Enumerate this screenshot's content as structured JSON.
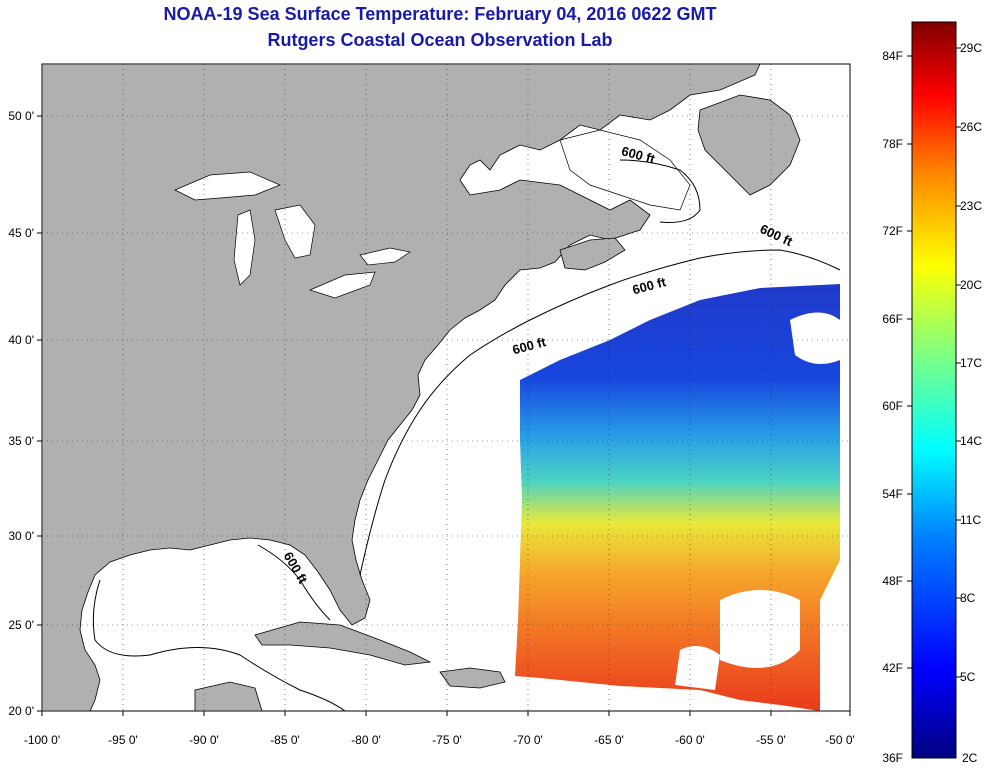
{
  "title": {
    "line1": "NOAA-19 Sea Surface Temperature:  February 04, 2016 0622 GMT",
    "line2": "Rutgers Coastal Ocean Observation Lab"
  },
  "map": {
    "lon_range": [
      -100,
      -50
    ],
    "lat_range": [
      20,
      52.5
    ],
    "lon_ticks": [
      "-100 0'",
      "-95 0'",
      "-90 0'",
      "-85 0'",
      "-80 0'",
      "-75 0'",
      "-70 0'",
      "-65 0'",
      "-60 0'",
      "-55 0'",
      "-50 0'"
    ],
    "lat_ticks": [
      "50 0'",
      "45 0'",
      "40 0'",
      "35 0'",
      "30 0'",
      "25 0'",
      "20 0'"
    ],
    "land_color": "#b0b0b0",
    "ocean_color": "#ffffff",
    "contour_label": "600 ft"
  },
  "colorbar": {
    "f_labels": [
      "84F",
      "78F",
      "72F",
      "66F",
      "60F",
      "54F",
      "48F",
      "42F",
      "36F"
    ],
    "c_labels": [
      "29C",
      "26C",
      "23C",
      "20C",
      "17C",
      "14C",
      "11C",
      "8C",
      "5C",
      "2C"
    ],
    "colors": [
      "#800000",
      "#ff0000",
      "#ff8000",
      "#ffff00",
      "#80ff80",
      "#00ffff",
      "#0080ff",
      "#0000ff",
      "#000080"
    ]
  }
}
